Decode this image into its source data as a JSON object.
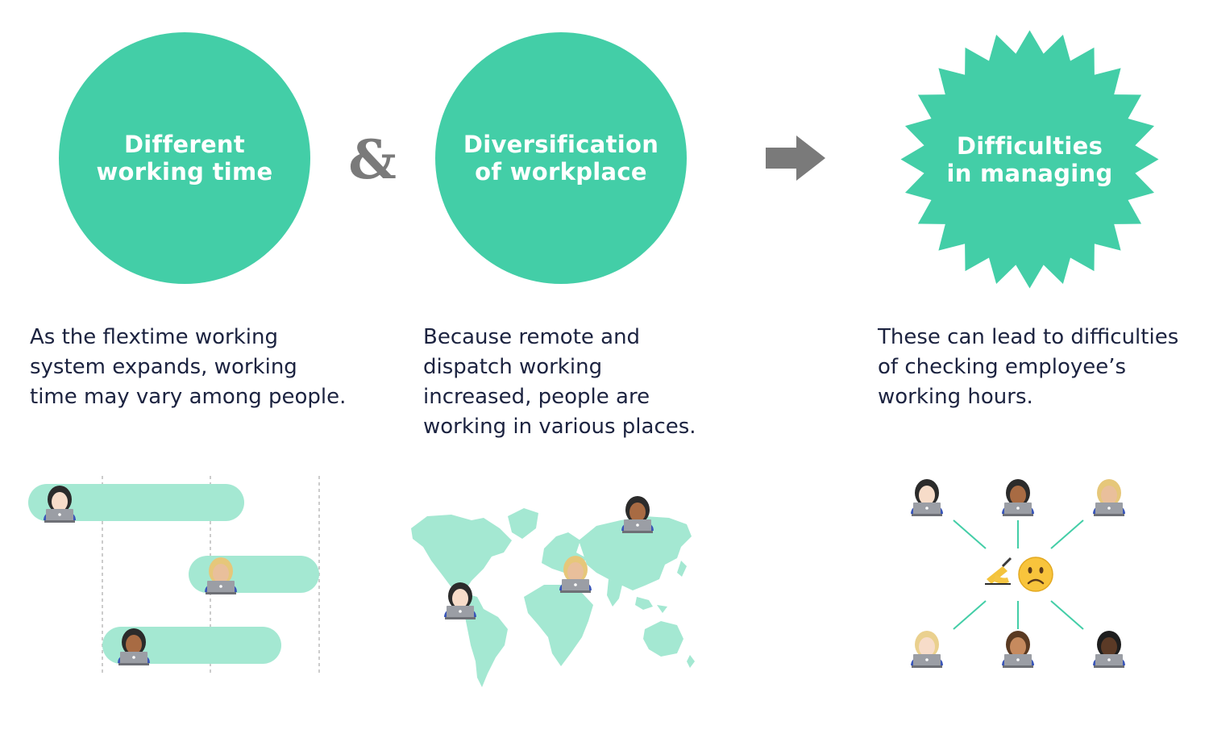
{
  "badges": {
    "working_time": "Different\nworking time",
    "workplace": "Diversification\nof workplace",
    "managing": "Difficulties\nin managing"
  },
  "connector_ampersand": "&",
  "descriptions": {
    "working_time": "As the flextime working\nsystem expands, working\ntime may vary among people.",
    "workplace": "Because remote and\ndispatch working\nincreased, people are\nworking in various places.",
    "managing": "These can lead to difficulties\nof checking employee’s\nworking hours."
  },
  "icons": {
    "person": "person-with-laptop-icon",
    "writing_hand": "writing-hand-icon",
    "frown": "frowning-face-icon",
    "arrow": "right-arrow-icon"
  },
  "colors": {
    "primary": "#43cea7",
    "light": "#a4e8d2",
    "text": "#1c2340",
    "gray": "#7a7a7a"
  }
}
